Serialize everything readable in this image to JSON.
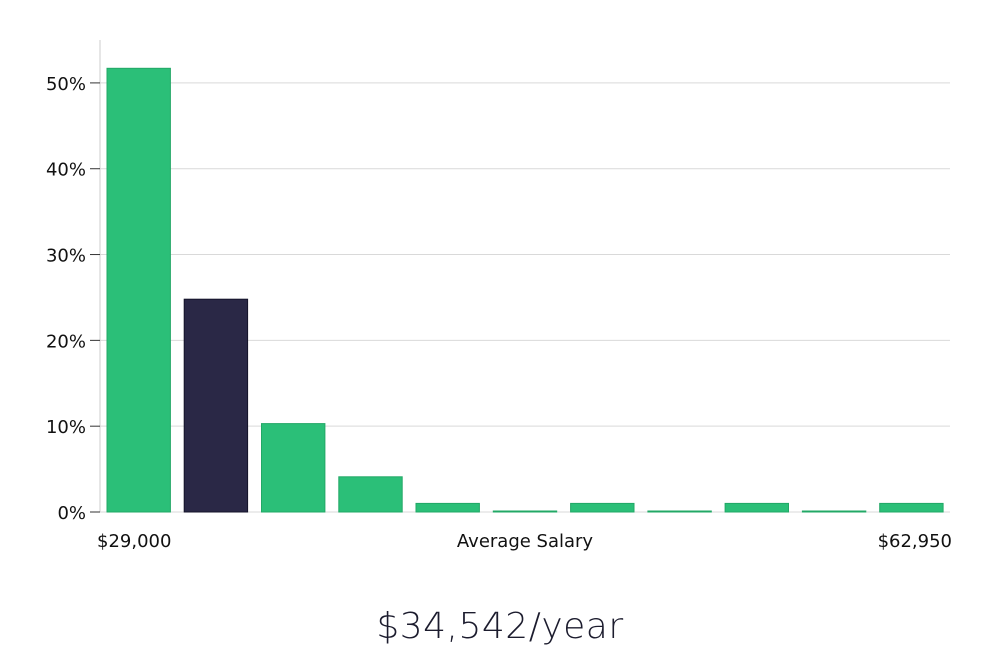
{
  "chart_data": {
    "type": "bar",
    "categories": [
      "1",
      "2",
      "3",
      "4",
      "5",
      "6",
      "7",
      "8",
      "9",
      "10",
      "11"
    ],
    "values": [
      51.7,
      24.8,
      10.3,
      4.1,
      1.0,
      0.1,
      1.0,
      0.1,
      1.0,
      0.1,
      1.0
    ],
    "highlight_index": 1,
    "ylim": [
      0,
      55
    ],
    "yticks": [
      0,
      10,
      20,
      30,
      40,
      50
    ],
    "y_tick_format": "percent",
    "grid": true,
    "xlabel": "Average Salary",
    "x_min_label": "$29,000",
    "x_max_label": "$62,950",
    "colors": {
      "bar": "#2bbf78",
      "bar_edge": "#22a866",
      "highlight": "#2a2846",
      "highlight_edge": "#14132a",
      "grid": "#d9d9d9",
      "axis": "#cccccc"
    }
  },
  "summary": {
    "salary_text": "$34,542/year"
  }
}
